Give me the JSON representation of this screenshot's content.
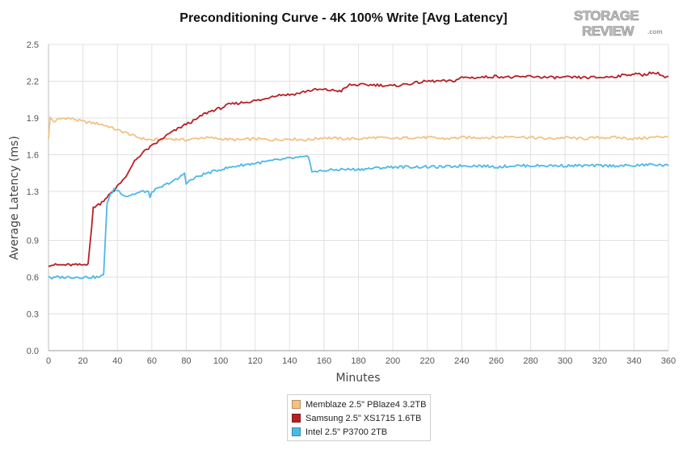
{
  "chart_data": {
    "type": "line",
    "title": "Preconditioning Curve - 4K 100% Write [Avg Latency]",
    "xlabel": "Minutes",
    "ylabel": "Average Latency (ms)",
    "xlim": [
      0,
      360
    ],
    "ylim": [
      0,
      2.5
    ],
    "x_ticks": [
      0,
      20,
      40,
      60,
      80,
      100,
      120,
      140,
      160,
      180,
      200,
      220,
      240,
      260,
      280,
      300,
      320,
      340,
      360
    ],
    "y_ticks": [
      0.0,
      0.3,
      0.6,
      0.9,
      1.3,
      1.6,
      1.9,
      2.2,
      2.5
    ],
    "y_tick_labels": [
      "0.0",
      "0.3",
      "0.6",
      "0.9",
      "1.3",
      "1.6",
      "1.9",
      "2.2",
      "2.5"
    ],
    "grid": true,
    "legend_position": "bottom-center",
    "series": [
      {
        "name": "Memblaze 2.5\" PBlaze4 3.2TB",
        "color": "#f2c283",
        "points": [
          [
            0,
            1.73
          ],
          [
            1,
            1.9
          ],
          [
            3,
            1.87
          ],
          [
            6,
            1.89
          ],
          [
            10,
            1.9
          ],
          [
            15,
            1.89
          ],
          [
            20,
            1.87
          ],
          [
            25,
            1.86
          ],
          [
            30,
            1.85
          ],
          [
            35,
            1.83
          ],
          [
            40,
            1.8
          ],
          [
            45,
            1.78
          ],
          [
            50,
            1.75
          ],
          [
            55,
            1.73
          ],
          [
            60,
            1.72
          ],
          [
            70,
            1.73
          ],
          [
            80,
            1.72
          ],
          [
            90,
            1.74
          ],
          [
            100,
            1.73
          ],
          [
            110,
            1.72
          ],
          [
            120,
            1.73
          ],
          [
            130,
            1.72
          ],
          [
            140,
            1.73
          ],
          [
            150,
            1.72
          ],
          [
            160,
            1.74
          ],
          [
            170,
            1.73
          ],
          [
            180,
            1.73
          ],
          [
            190,
            1.74
          ],
          [
            200,
            1.73
          ],
          [
            210,
            1.74
          ],
          [
            220,
            1.74
          ],
          [
            230,
            1.73
          ],
          [
            240,
            1.74
          ],
          [
            250,
            1.74
          ],
          [
            260,
            1.74
          ],
          [
            270,
            1.75
          ],
          [
            280,
            1.74
          ],
          [
            290,
            1.73
          ],
          [
            300,
            1.74
          ],
          [
            310,
            1.73
          ],
          [
            320,
            1.74
          ],
          [
            330,
            1.74
          ],
          [
            340,
            1.73
          ],
          [
            350,
            1.74
          ],
          [
            360,
            1.75
          ]
        ]
      },
      {
        "name": "Samsung 2.5\" XS1715 1.6TB",
        "color": "#b62025",
        "points": [
          [
            0,
            0.7
          ],
          [
            5,
            0.7
          ],
          [
            10,
            0.7
          ],
          [
            15,
            0.7
          ],
          [
            20,
            0.7
          ],
          [
            23,
            0.71
          ],
          [
            25,
            1.0
          ],
          [
            26,
            1.17
          ],
          [
            30,
            1.2
          ],
          [
            35,
            1.27
          ],
          [
            38,
            1.3
          ],
          [
            40,
            1.35
          ],
          [
            45,
            1.42
          ],
          [
            50,
            1.55
          ],
          [
            55,
            1.62
          ],
          [
            60,
            1.67
          ],
          [
            65,
            1.72
          ],
          [
            70,
            1.77
          ],
          [
            75,
            1.81
          ],
          [
            80,
            1.85
          ],
          [
            85,
            1.88
          ],
          [
            90,
            1.93
          ],
          [
            95,
            1.96
          ],
          [
            100,
            1.98
          ],
          [
            105,
            2.01
          ],
          [
            110,
            2.02
          ],
          [
            115,
            2.03
          ],
          [
            120,
            2.04
          ],
          [
            125,
            2.05
          ],
          [
            130,
            2.08
          ],
          [
            135,
            2.09
          ],
          [
            140,
            2.09
          ],
          [
            145,
            2.1
          ],
          [
            150,
            2.12
          ],
          [
            155,
            2.13
          ],
          [
            160,
            2.13
          ],
          [
            170,
            2.12
          ],
          [
            175,
            2.17
          ],
          [
            180,
            2.17
          ],
          [
            190,
            2.17
          ],
          [
            200,
            2.16
          ],
          [
            210,
            2.18
          ],
          [
            220,
            2.2
          ],
          [
            230,
            2.2
          ],
          [
            235,
            2.2
          ],
          [
            240,
            2.23
          ],
          [
            250,
            2.23
          ],
          [
            260,
            2.24
          ],
          [
            270,
            2.23
          ],
          [
            280,
            2.24
          ],
          [
            290,
            2.23
          ],
          [
            300,
            2.23
          ],
          [
            310,
            2.23
          ],
          [
            320,
            2.23
          ],
          [
            330,
            2.24
          ],
          [
            340,
            2.26
          ],
          [
            345,
            2.25
          ],
          [
            350,
            2.27
          ],
          [
            355,
            2.26
          ],
          [
            358,
            2.23
          ],
          [
            360,
            2.24
          ]
        ]
      },
      {
        "name": "Intel 2.5\" P3700 2TB",
        "color": "#4db8e8",
        "points": [
          [
            0,
            0.61
          ],
          [
            2,
            0.59
          ],
          [
            5,
            0.6
          ],
          [
            10,
            0.6
          ],
          [
            15,
            0.6
          ],
          [
            20,
            0.6
          ],
          [
            25,
            0.6
          ],
          [
            30,
            0.6
          ],
          [
            32,
            0.62
          ],
          [
            34,
            1.2
          ],
          [
            36,
            1.27
          ],
          [
            38,
            1.32
          ],
          [
            40,
            1.31
          ],
          [
            45,
            1.26
          ],
          [
            50,
            1.28
          ],
          [
            55,
            1.3
          ],
          [
            58,
            1.3
          ],
          [
            59,
            1.24
          ],
          [
            60,
            1.3
          ],
          [
            65,
            1.33
          ],
          [
            70,
            1.37
          ],
          [
            75,
            1.4
          ],
          [
            79,
            1.45
          ],
          [
            80,
            1.37
          ],
          [
            85,
            1.41
          ],
          [
            90,
            1.44
          ],
          [
            95,
            1.46
          ],
          [
            100,
            1.48
          ],
          [
            110,
            1.51
          ],
          [
            120,
            1.53
          ],
          [
            130,
            1.55
          ],
          [
            140,
            1.57
          ],
          [
            150,
            1.58
          ],
          [
            151,
            1.58
          ],
          [
            153,
            1.47
          ],
          [
            155,
            1.46
          ],
          [
            160,
            1.47
          ],
          [
            170,
            1.48
          ],
          [
            180,
            1.48
          ],
          [
            190,
            1.49
          ],
          [
            200,
            1.5
          ],
          [
            210,
            1.5
          ],
          [
            220,
            1.5
          ],
          [
            230,
            1.5
          ],
          [
            240,
            1.51
          ],
          [
            250,
            1.51
          ],
          [
            260,
            1.5
          ],
          [
            270,
            1.51
          ],
          [
            280,
            1.51
          ],
          [
            290,
            1.51
          ],
          [
            300,
            1.51
          ],
          [
            310,
            1.51
          ],
          [
            320,
            1.51
          ],
          [
            330,
            1.51
          ],
          [
            340,
            1.51
          ],
          [
            350,
            1.52
          ],
          [
            360,
            1.51
          ]
        ]
      }
    ]
  }
}
